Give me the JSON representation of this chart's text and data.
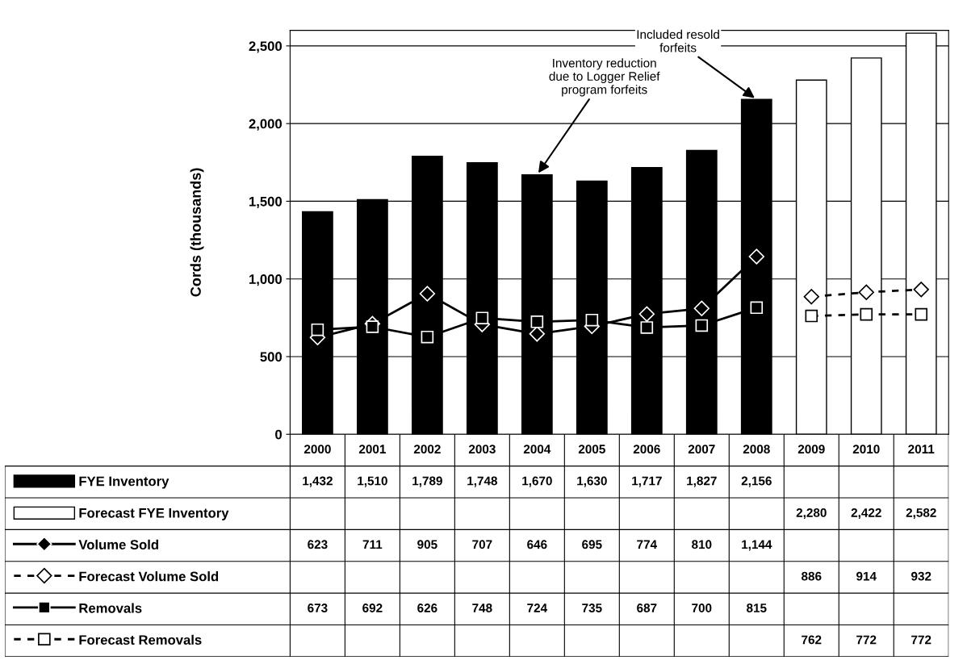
{
  "chart_data": {
    "type": "bar",
    "ylabel": "Cords (thousands)",
    "categories": [
      "2000",
      "2001",
      "2002",
      "2003",
      "2004",
      "2005",
      "2006",
      "2007",
      "2008",
      "2009",
      "2010",
      "2011"
    ],
    "series": [
      {
        "name": "FYE Inventory",
        "color": "#000000",
        "values": [
          1432,
          1510,
          1789,
          1748,
          1670,
          1630,
          1717,
          1827,
          2156,
          null,
          null,
          null
        ],
        "value_labels": [
          "1,432",
          "1,510",
          "1,789",
          "1,748",
          "1,670",
          "1,630",
          "1,717",
          "1,827",
          "2,156",
          null,
          null,
          null
        ]
      },
      {
        "name": "Forecast FYE Inventory",
        "color": "#ffffff",
        "values": [
          null,
          null,
          null,
          null,
          null,
          null,
          null,
          null,
          null,
          2280,
          2422,
          2582
        ],
        "value_labels": [
          null,
          null,
          null,
          null,
          null,
          null,
          null,
          null,
          null,
          "2,280",
          "2,422",
          "2,582"
        ]
      },
      {
        "name": "Volume Sold",
        "type": "line",
        "color": "#000000",
        "marker": "diamond",
        "line_style": "solid",
        "values": [
          623,
          711,
          905,
          707,
          646,
          695,
          774,
          810,
          1144,
          null,
          null,
          null
        ],
        "value_labels": [
          "623",
          "711",
          "905",
          "707",
          "646",
          "695",
          "774",
          "810",
          "1,144",
          null,
          null,
          null
        ]
      },
      {
        "name": "Forecast Volume Sold",
        "type": "line",
        "color": "#000000",
        "marker": "diamond",
        "line_style": "dashed",
        "values": [
          null,
          null,
          null,
          null,
          null,
          null,
          null,
          null,
          null,
          886,
          914,
          932
        ],
        "value_labels": [
          null,
          null,
          null,
          null,
          null,
          null,
          null,
          null,
          null,
          "886",
          "914",
          "932"
        ]
      },
      {
        "name": "Removals",
        "type": "line",
        "color": "#000000",
        "marker": "square",
        "line_style": "solid",
        "values": [
          673,
          692,
          626,
          748,
          724,
          735,
          687,
          700,
          815,
          null,
          null,
          null
        ],
        "value_labels": [
          "673",
          "692",
          "626",
          "748",
          "724",
          "735",
          "687",
          "700",
          "815",
          null,
          null,
          null
        ]
      },
      {
        "name": "Forecast Removals",
        "type": "line",
        "color": "#000000",
        "marker": "square",
        "line_style": "dashed",
        "values": [
          null,
          null,
          null,
          null,
          null,
          null,
          null,
          null,
          null,
          762,
          772,
          772
        ],
        "value_labels": [
          null,
          null,
          null,
          null,
          null,
          null,
          null,
          null,
          null,
          "762",
          "772",
          "772"
        ]
      }
    ],
    "ylim": [
      0,
      2600
    ],
    "yticks": [
      0,
      500,
      {
        "value": 1000,
        "label": "1,000"
      },
      {
        "value": 1500,
        "label": "1,500"
      },
      {
        "value": 2000,
        "label": "2,000"
      },
      {
        "value": 2500,
        "label": "2,500"
      }
    ],
    "grid": "y",
    "legend": "bottom left",
    "annotations": [
      {
        "text": "Inventory reduction\ndue to Logger Relief\nprogram forfeits",
        "x": "2004",
        "y": 1670
      },
      {
        "text": "Included resold\nforfeits",
        "x": "2008",
        "y": 2156
      }
    ]
  }
}
